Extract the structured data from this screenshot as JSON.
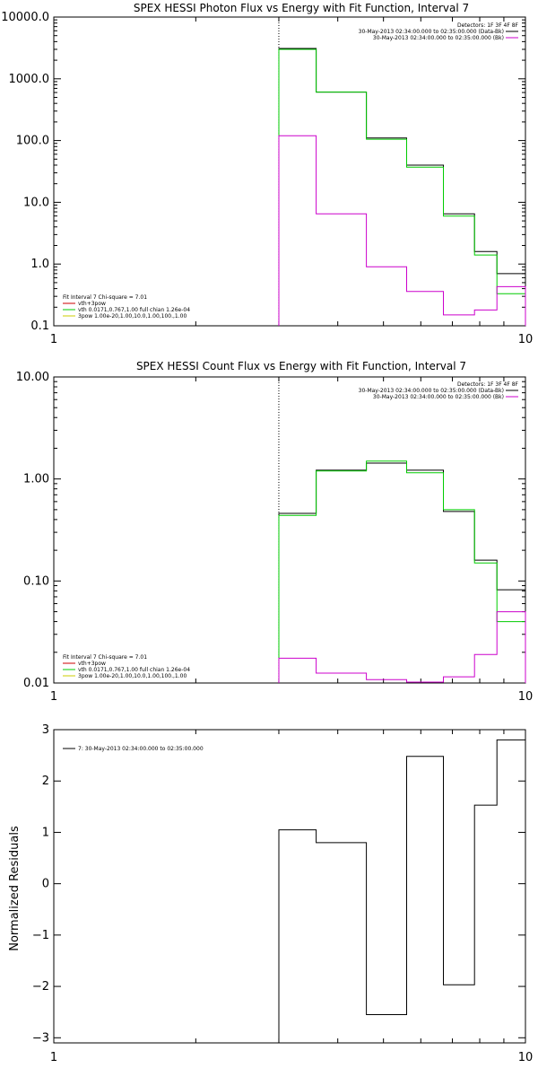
{
  "chart_data": [
    {
      "type": "line",
      "title": "SPEX HESSI Photon Flux vs Energy with Fit Function, Interval 7",
      "xscale": "log",
      "yscale": "log",
      "xlim": [
        1,
        10
      ],
      "ylim": [
        0.1,
        10000
      ],
      "x_ticks": [
        "1",
        "10"
      ],
      "y_ticks": [
        "0.1",
        "1.0",
        "10.0",
        "100.0",
        "1000.0",
        "10000.0"
      ],
      "y_tick_values": [
        0.1,
        1,
        10,
        100,
        1000,
        10000
      ],
      "vline_x": 3,
      "legend_top_right": {
        "header": "Detectors: 1F 3F 4F 8F",
        "entries": [
          {
            "text": "30-May-2013 02:34:00.000 to 02:35:00.000 (Data-Bk)",
            "color": "#000000"
          },
          {
            "text": "30-May-2013 02:34:00.000 to 02:35:00.000 (Bk)",
            "color": "#cc00cc"
          }
        ]
      },
      "legend_bottom_left": {
        "header": "Fit Interval  7   Chi-square = 7.01",
        "entries": [
          {
            "text": "vth+3pow",
            "color": "#cc0000"
          },
          {
            "text": "vth 0.0171,0.767,1.00  full chian 1.26e-04",
            "color": "#00cc00"
          },
          {
            "text": "3pow 1.00e-20,1.00,10.0,1.00,100.,1.00",
            "color": "#cccc00"
          }
        ]
      },
      "bin_edges": [
        3,
        3.6,
        4.6,
        5.6,
        6.7,
        7.8,
        8.7,
        10
      ],
      "series": [
        {
          "color": "#000000",
          "values": [
            3100,
            610,
            110,
            40,
            6.5,
            1.6,
            0.7
          ]
        },
        {
          "color": "#00cc00",
          "values": [
            3000,
            610,
            105,
            37,
            6.0,
            1.4,
            0.33
          ]
        },
        {
          "color": "#cc00cc",
          "values": [
            120,
            6.5,
            0.9,
            0.36,
            0.15,
            0.18,
            0.43
          ]
        }
      ]
    },
    {
      "type": "line",
      "title": "SPEX HESSI Count Flux vs Energy with Fit Function, Interval 7",
      "xscale": "log",
      "yscale": "log",
      "xlim": [
        1,
        10
      ],
      "ylim": [
        0.01,
        10
      ],
      "x_ticks": [
        "1",
        "10"
      ],
      "y_ticks": [
        "0.01",
        "0.10",
        "1.00",
        "10.00"
      ],
      "y_tick_values": [
        0.01,
        0.1,
        1,
        10
      ],
      "vline_x": 3,
      "legend_top_right": {
        "header": "Detectors: 1F 3F 4F 8F",
        "entries": [
          {
            "text": "30-May-2013 02:34:00.000 to 02:35:00.000 (Data-Bk)",
            "color": "#000000"
          },
          {
            "text": "30-May-2013 02:34:00.000 to 02:35:00.000 (Bk)",
            "color": "#cc00cc"
          }
        ]
      },
      "legend_bottom_left": {
        "header": "Fit Interval  7   Chi-square = 7.01",
        "entries": [
          {
            "text": "vth+3pow",
            "color": "#cc0000"
          },
          {
            "text": "vth 0.0171,0.767,1.00  full chian 1.26e-04",
            "color": "#00cc00"
          },
          {
            "text": "3pow 1.00e-20,1.00,10.0,1.00,100.,1.00",
            "color": "#cccc00"
          }
        ]
      },
      "bin_edges": [
        3,
        3.6,
        4.6,
        5.6,
        6.7,
        7.8,
        8.7,
        10
      ],
      "series": [
        {
          "color": "#000000",
          "values": [
            0.46,
            1.22,
            1.43,
            1.22,
            0.48,
            0.16,
            0.082
          ]
        },
        {
          "color": "#00cc00",
          "values": [
            0.44,
            1.2,
            1.5,
            1.15,
            0.5,
            0.15,
            0.04
          ]
        },
        {
          "color": "#cc00cc",
          "values": [
            0.0175,
            0.0125,
            0.0108,
            0.0102,
            0.0115,
            0.019,
            0.05
          ]
        }
      ]
    },
    {
      "type": "line",
      "title": "",
      "ylabel": "Normalized Residuals",
      "xscale": "log",
      "yscale": "linear",
      "xlim": [
        1,
        10
      ],
      "ylim": [
        -3.1,
        3
      ],
      "x_ticks": [
        "1",
        "10"
      ],
      "y_ticks": [
        "−3",
        "−2",
        "−1",
        "0",
        "1",
        "2",
        "3"
      ],
      "y_tick_values": [
        -3,
        -2,
        -1,
        0,
        1,
        2,
        3
      ],
      "legend_top_left": {
        "entries": [
          {
            "text": "7: 30-May-2013 02:34:00.000 to 02:35:00.000",
            "color": "#000000"
          }
        ]
      },
      "bin_edges": [
        3,
        3.6,
        4.6,
        5.6,
        6.7,
        7.8,
        8.7,
        10
      ],
      "series": [
        {
          "color": "#000000",
          "values": [
            1.05,
            0.8,
            -2.55,
            2.48,
            -1.97,
            1.53,
            2.8
          ]
        }
      ]
    }
  ]
}
